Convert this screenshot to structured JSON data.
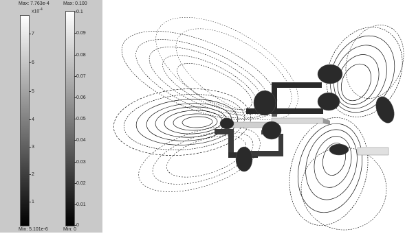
{
  "colorbar_left": {
    "max_label": "Max: 7.763e-4",
    "multiplier": "x10",
    "multiplier_exponent": "-4",
    "min_label": "Min: 5.101e-6",
    "ticks": [
      "7",
      "6",
      "5",
      "4",
      "3",
      "2",
      "1"
    ]
  },
  "colorbar_right": {
    "max_label": "Max: 0.100",
    "min_label": "Min: 0",
    "ticks": [
      "0.1",
      "0.09",
      "0.08",
      "0.07",
      "0.06",
      "0.05",
      "0.04",
      "0.03",
      "0.02",
      "0.01",
      "0"
    ]
  },
  "colors": {
    "panel_background": "#c9c9c9",
    "gradient_top": "#ffffff",
    "gradient_bottom": "#000000",
    "streamline": "#111111",
    "structure_dark": "#2a2a2a",
    "structure_light": "#d8d8d8"
  }
}
